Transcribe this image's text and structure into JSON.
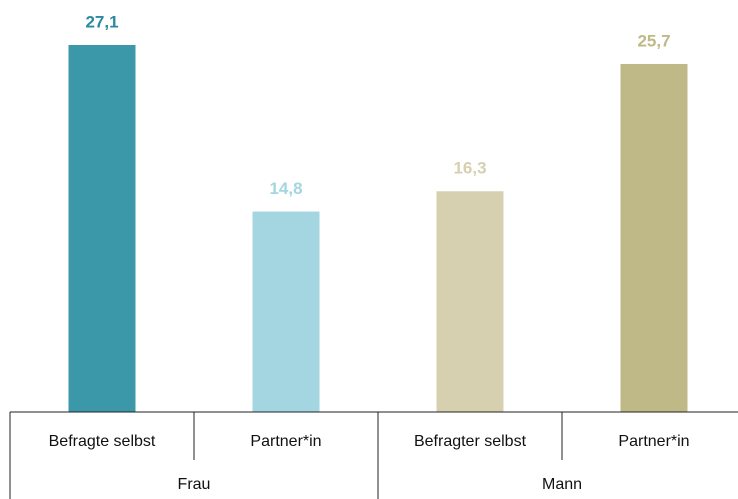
{
  "chart_data": {
    "type": "bar",
    "categories": [
      "Befragte selbst",
      "Partner*in",
      "Befragter selbst",
      "Partner*in"
    ],
    "groups": [
      {
        "name": "Frau",
        "count": 2
      },
      {
        "name": "Mann",
        "count": 2
      }
    ],
    "values": [
      27.1,
      14.8,
      16.3,
      25.7
    ],
    "value_labels": [
      "27,1",
      "14,8",
      "16,3",
      "25,7"
    ],
    "colors": [
      "#3a98a8",
      "#a3d6e0",
      "#d6d0b1",
      "#bfb987"
    ]
  }
}
